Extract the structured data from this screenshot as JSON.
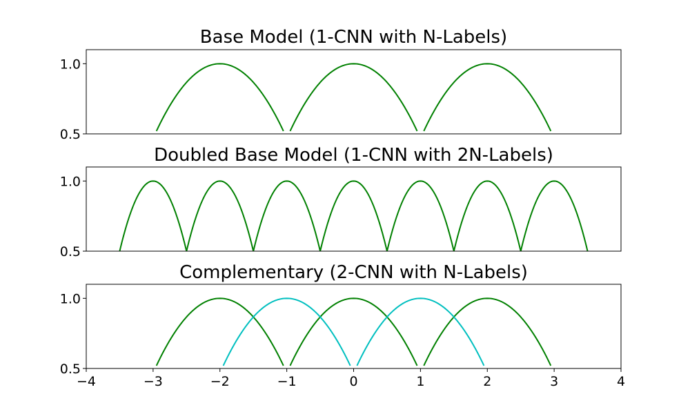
{
  "chart_data": [
    {
      "type": "line",
      "title": "Base Model (1-CNN with N-Labels)",
      "xlim": [
        -4,
        4
      ],
      "ylim": [
        0.5,
        1.1
      ],
      "y_ticks": [
        "0.5",
        "1.0"
      ],
      "x_ticks": [],
      "grid": false,
      "series": [
        {
          "color": "#008000",
          "arches": [
            {
              "center": -2,
              "x": [
                -2.95,
                -1.05
              ],
              "y_min": 0.52
            },
            {
              "center": 0,
              "x": [
                -0.95,
                0.95
              ],
              "y_min": 0.52
            },
            {
              "center": 2,
              "x": [
                1.05,
                2.95
              ],
              "y_min": 0.52
            }
          ],
          "peak": 1.0
        }
      ]
    },
    {
      "type": "line",
      "title": "Doubled Base Model (1-CNN with 2N-Labels)",
      "xlim": [
        -4,
        4
      ],
      "ylim": [
        0.5,
        1.1
      ],
      "y_ticks": [
        "0.5",
        "1.0"
      ],
      "x_ticks": [],
      "grid": false,
      "series": [
        {
          "color": "#008000",
          "arches": [
            {
              "center": -3,
              "x": [
                -3.5,
                -2.5
              ],
              "y_min": 0.5
            },
            {
              "center": -2,
              "x": [
                -2.5,
                -1.5
              ],
              "y_min": 0.5
            },
            {
              "center": -1,
              "x": [
                -1.5,
                -0.5
              ],
              "y_min": 0.5
            },
            {
              "center": 0,
              "x": [
                -0.5,
                0.5
              ],
              "y_min": 0.5
            },
            {
              "center": 1,
              "x": [
                0.5,
                1.5
              ],
              "y_min": 0.5
            },
            {
              "center": 2,
              "x": [
                1.5,
                2.5
              ],
              "y_min": 0.5
            },
            {
              "center": 3,
              "x": [
                2.5,
                3.5
              ],
              "y_min": 0.5
            }
          ],
          "peak": 1.0
        }
      ]
    },
    {
      "type": "line",
      "title": "Complementary (2-CNN with N-Labels)",
      "xlim": [
        -4,
        4
      ],
      "ylim": [
        0.5,
        1.1
      ],
      "y_ticks": [
        "0.5",
        "1.0"
      ],
      "x_ticks": [
        "−4",
        "−3",
        "−2",
        "−1",
        "0",
        "1",
        "2",
        "3",
        "4"
      ],
      "grid": false,
      "series": [
        {
          "color": "#008000",
          "arches": [
            {
              "center": -2,
              "x": [
                -2.95,
                -1.05
              ],
              "y_min": 0.52
            },
            {
              "center": 0,
              "x": [
                -0.95,
                0.95
              ],
              "y_min": 0.52
            },
            {
              "center": 2,
              "x": [
                1.05,
                2.95
              ],
              "y_min": 0.52
            }
          ],
          "peak": 1.0
        },
        {
          "color": "#00bfbf",
          "arches": [
            {
              "center": -1,
              "x": [
                -1.95,
                -0.05
              ],
              "y_min": 0.52
            },
            {
              "center": 1,
              "x": [
                0.05,
                1.95
              ],
              "y_min": 0.52
            }
          ],
          "peak": 1.0
        }
      ]
    }
  ]
}
